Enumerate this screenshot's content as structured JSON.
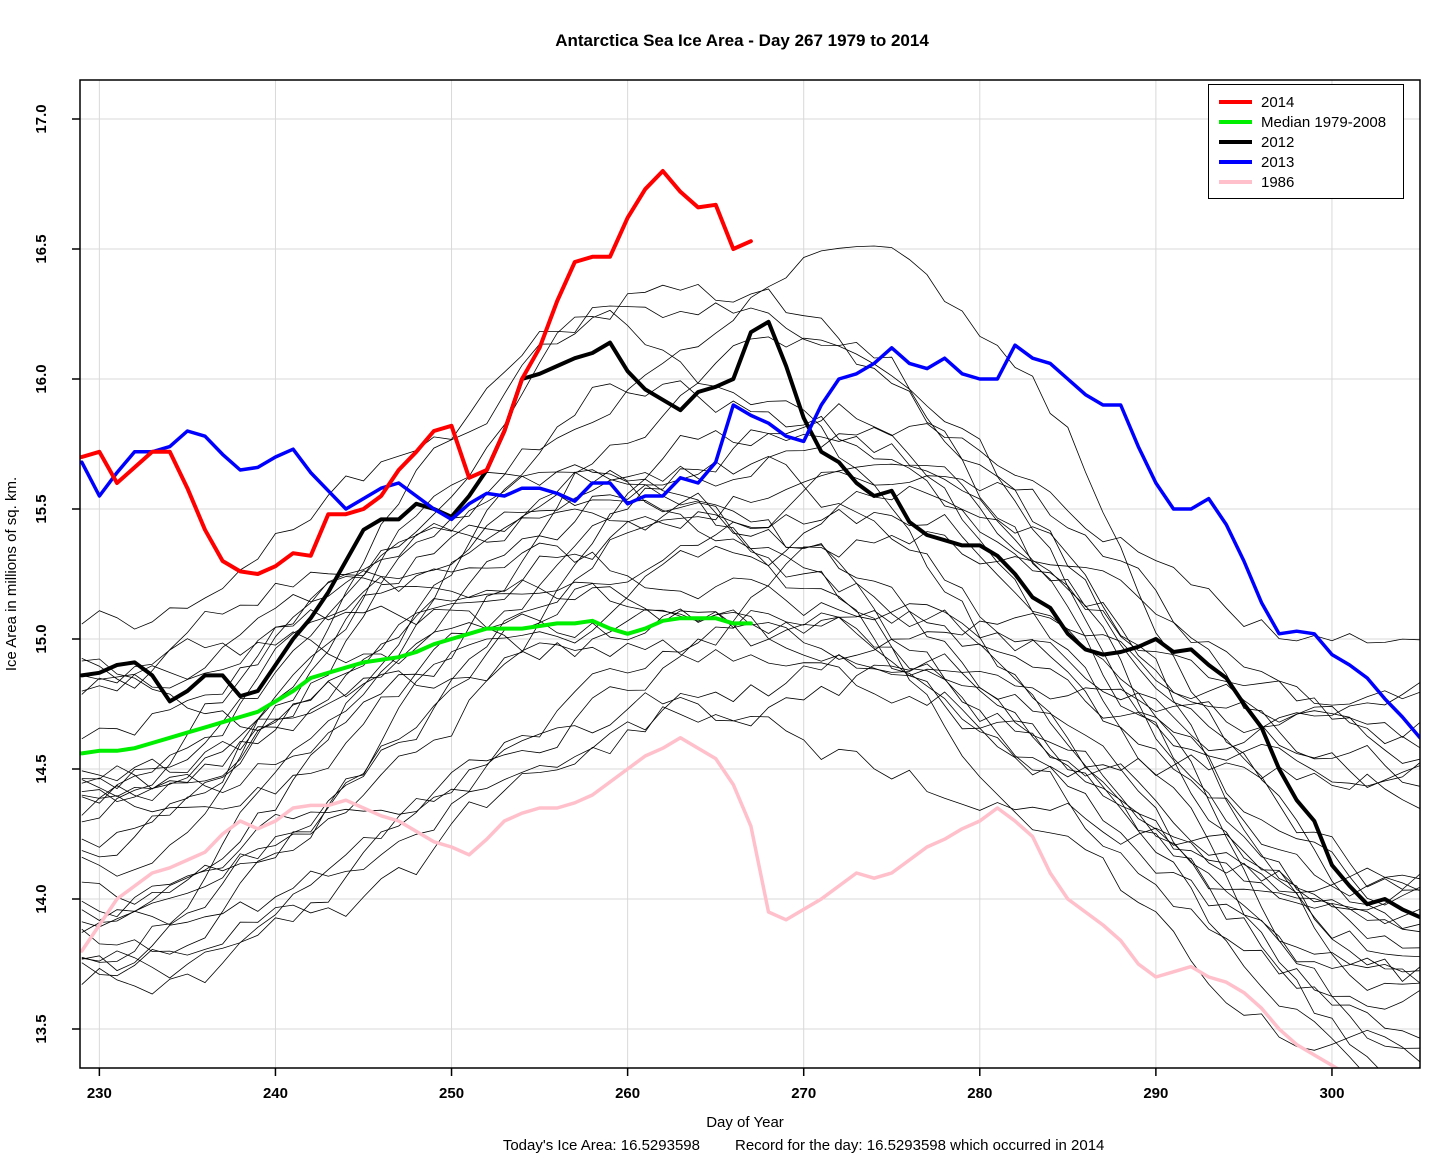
{
  "chart_data": {
    "type": "line",
    "title": "Antarctica Sea Ice Area - Day 267 1979 to 2014",
    "xlabel": "Day of Year",
    "ylabel": "Ice Area in millions of sq. km.",
    "caption_today": "Today's Ice Area: 16.5293598",
    "caption_record": "Record for the day: 16.5293598 which occurred in 2014",
    "xlim": [
      228.9,
      305.0
    ],
    "ylim": [
      13.35,
      17.15
    ],
    "xticks": [
      230,
      240,
      250,
      260,
      270,
      280,
      290,
      300
    ],
    "yticks": [
      13.5,
      14.0,
      14.5,
      15.0,
      15.5,
      16.0,
      16.5,
      17.0
    ],
    "grid": true,
    "grid_color": "#d9d9d9",
    "legend_position": "top-right",
    "legend": [
      {
        "label": "2014",
        "color": "#ff0000"
      },
      {
        "label": "Median 1979-2008",
        "color": "#00ee00"
      },
      {
        "label": "2012",
        "color": "#000000"
      },
      {
        "label": "2013",
        "color": "#0000ff"
      },
      {
        "label": "1986",
        "color": "#ffc0cb"
      }
    ],
    "series": [
      {
        "name": "2014",
        "color": "#ff0000",
        "width": 4,
        "z": 5,
        "x_start": 229,
        "values": [
          15.7,
          15.72,
          15.6,
          15.66,
          15.72,
          15.72,
          15.58,
          15.42,
          15.3,
          15.26,
          15.25,
          15.28,
          15.33,
          15.32,
          15.48,
          15.48,
          15.5,
          15.55,
          15.65,
          15.72,
          15.8,
          15.82,
          15.62,
          15.65,
          15.8,
          16.0,
          16.12,
          16.3,
          16.45,
          16.47,
          16.47,
          16.62,
          16.73,
          16.8,
          16.72,
          16.66,
          16.67,
          16.5,
          16.53
        ]
      },
      {
        "name": "Median 1979-2008",
        "color": "#00ee00",
        "width": 4,
        "z": 1,
        "x_start": 229,
        "values": [
          14.56,
          14.57,
          14.57,
          14.58,
          14.6,
          14.62,
          14.64,
          14.66,
          14.68,
          14.7,
          14.72,
          14.76,
          14.8,
          14.85,
          14.87,
          14.89,
          14.91,
          14.92,
          14.93,
          14.95,
          14.98,
          15.0,
          15.02,
          15.04,
          15.04,
          15.04,
          15.05,
          15.06,
          15.06,
          15.07,
          15.04,
          15.02,
          15.04,
          15.07,
          15.08,
          15.08,
          15.08,
          15.06,
          15.06
        ]
      },
      {
        "name": "2012",
        "color": "#000000",
        "width": 4,
        "z": 2,
        "x_start": 229,
        "values": [
          14.86,
          14.87,
          14.9,
          14.91,
          14.86,
          14.76,
          14.8,
          14.86,
          14.86,
          14.78,
          14.8,
          14.9,
          15.0,
          15.08,
          15.18,
          15.3,
          15.42,
          15.46,
          15.46,
          15.52,
          15.5,
          15.47,
          15.55,
          15.65,
          15.8,
          16.0,
          16.02,
          16.05,
          16.08,
          16.1,
          16.14,
          16.03,
          15.96,
          15.92,
          15.88,
          15.95,
          15.97,
          16.0,
          16.18,
          16.22,
          16.05,
          15.85,
          15.72,
          15.68,
          15.6,
          15.55,
          15.57,
          15.45,
          15.4,
          15.38,
          15.36,
          15.36,
          15.32,
          15.25,
          15.16,
          15.12,
          15.02,
          14.96,
          14.94,
          14.95,
          14.97,
          15.0,
          14.95,
          14.96,
          14.9,
          14.85,
          14.75,
          14.66,
          14.5,
          14.38,
          14.3,
          14.13,
          14.05,
          13.98,
          14.0,
          13.96,
          13.93
        ]
      },
      {
        "name": "2013",
        "color": "#0000ff",
        "width": 3.5,
        "z": 3,
        "x_start": 229,
        "values": [
          15.68,
          15.55,
          15.64,
          15.72,
          15.72,
          15.74,
          15.8,
          15.78,
          15.71,
          15.65,
          15.66,
          15.7,
          15.73,
          15.64,
          15.57,
          15.5,
          15.54,
          15.58,
          15.6,
          15.55,
          15.5,
          15.46,
          15.52,
          15.56,
          15.55,
          15.58,
          15.58,
          15.56,
          15.53,
          15.6,
          15.6,
          15.52,
          15.55,
          15.55,
          15.62,
          15.6,
          15.68,
          15.9,
          15.86,
          15.83,
          15.78,
          15.76,
          15.9,
          16.0,
          16.02,
          16.06,
          16.12,
          16.06,
          16.04,
          16.08,
          16.02,
          16.0,
          16.0,
          16.13,
          16.08,
          16.06,
          16.0,
          15.94,
          15.9,
          15.9,
          15.74,
          15.6,
          15.5,
          15.5,
          15.54,
          15.44,
          15.3,
          15.14,
          15.02,
          15.03,
          15.02,
          14.94,
          14.9,
          14.85,
          14.77,
          14.7,
          14.62
        ]
      },
      {
        "name": "1986",
        "color": "#ffc0cb",
        "width": 3.5,
        "z": 4,
        "x_start": 229,
        "values": [
          13.8,
          13.9,
          14.0,
          14.05,
          14.1,
          14.12,
          14.15,
          14.18,
          14.25,
          14.3,
          14.27,
          14.3,
          14.35,
          14.36,
          14.36,
          14.38,
          14.35,
          14.32,
          14.3,
          14.26,
          14.22,
          14.2,
          14.17,
          14.23,
          14.3,
          14.33,
          14.35,
          14.35,
          14.37,
          14.4,
          14.45,
          14.5,
          14.55,
          14.58,
          14.62,
          14.58,
          14.54,
          14.44,
          14.28,
          13.95,
          13.92,
          13.96,
          14.0,
          14.05,
          14.1,
          14.08,
          14.1,
          14.15,
          14.2,
          14.23,
          14.27,
          14.3,
          14.35,
          14.3,
          14.24,
          14.1,
          14.0,
          13.95,
          13.9,
          13.84,
          13.75,
          13.7,
          13.72,
          13.74,
          13.7,
          13.68,
          13.64,
          13.58,
          13.5,
          13.44,
          13.4,
          13.36,
          13.32,
          13.28
        ]
      }
    ],
    "background_series": {
      "description": "Unlabeled thin black lines: individual years 1979-2011 (shapes approximated procedurally)",
      "count": 30,
      "seed": 11,
      "color": "#000000",
      "width": 0.8,
      "day_start": 229,
      "day_end": 305,
      "start_range": [
        13.6,
        15.1
      ],
      "peak_day_range": [
        244,
        284
      ],
      "peak_range": [
        14.8,
        16.2
      ],
      "end_range": [
        13.35,
        14.75
      ],
      "noise_step": 0.13,
      "noise_max": 0.32
    }
  }
}
